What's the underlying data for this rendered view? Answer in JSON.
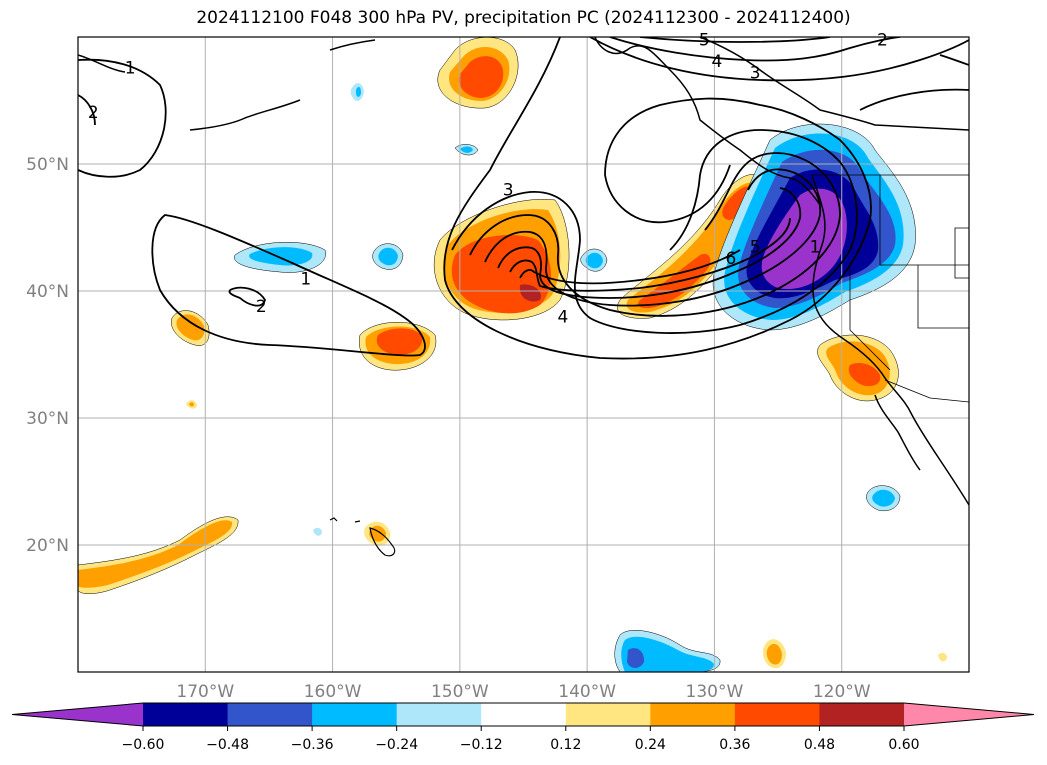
{
  "title": "2024112100 F048 300 hPa PV, precipitation PC (2024112300 - 2024112400)",
  "map": {
    "lon_range": [
      -180,
      -110
    ],
    "lat_range": [
      10,
      60
    ],
    "lon_ticks": [
      {
        "lon": -170,
        "label": "170°W"
      },
      {
        "lon": -160,
        "label": "160°W"
      },
      {
        "lon": -150,
        "label": "150°W"
      },
      {
        "lon": -140,
        "label": "140°W"
      },
      {
        "lon": -130,
        "label": "130°W"
      },
      {
        "lon": -120,
        "label": "120°W"
      }
    ],
    "lat_ticks": [
      {
        "lat": 20,
        "label": "20°N"
      },
      {
        "lat": 30,
        "label": "30°N"
      },
      {
        "lat": 40,
        "label": "40°N"
      },
      {
        "lat": 50,
        "label": "50°N"
      }
    ],
    "gridlines": true,
    "tick_label_color": "#808080"
  },
  "colorbar": {
    "levels": [
      "−0.60",
      "−0.48",
      "−0.36",
      "−0.24",
      "−0.12",
      "0.12",
      "0.24",
      "0.36",
      "0.48",
      "0.60"
    ],
    "colors": [
      "#9933cc",
      "#000099",
      "#3355cc",
      "#00bbff",
      "#aee6fa",
      "#ffffff",
      "#ffe680",
      "#ffa000",
      "#ff4a00",
      "#b22222",
      "#ff88aa"
    ],
    "extend": "both"
  },
  "pv_contour_labels": [
    {
      "text": "1",
      "lon": -175.9,
      "lat": 57.6
    },
    {
      "text": "2",
      "lon": -178.8,
      "lat": 54.1
    },
    {
      "text": "1",
      "lon": -162.1,
      "lat": 41.0
    },
    {
      "text": "2",
      "lon": -165.6,
      "lat": 38.8
    },
    {
      "text": "3",
      "lon": -146.2,
      "lat": 48.0
    },
    {
      "text": "4",
      "lon": -141.9,
      "lat": 38.0
    },
    {
      "text": "5",
      "lon": -130.8,
      "lat": 59.8
    },
    {
      "text": "4",
      "lon": -129.8,
      "lat": 58.1
    },
    {
      "text": "3",
      "lon": -126.8,
      "lat": 57.2
    },
    {
      "text": "2",
      "lon": -116.8,
      "lat": 59.8
    },
    {
      "text": "6",
      "lon": -128.7,
      "lat": 42.6
    },
    {
      "text": "5",
      "lon": -126.8,
      "lat": 43.5
    },
    {
      "text": "1",
      "lon": -122.1,
      "lat": 43.5
    }
  ]
}
